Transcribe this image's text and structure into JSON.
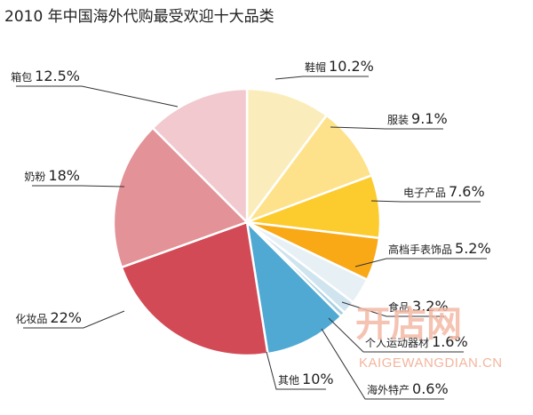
{
  "chart_data": {
    "type": "pie",
    "title": "2010 年中国海外代购最受欢迎十大品类",
    "slices": [
      {
        "label": "鞋帽",
        "value": 10.2,
        "display": "10.2%",
        "color": "#fbedbb"
      },
      {
        "label": "服装",
        "value": 9.1,
        "display": "9.1%",
        "color": "#fde28b"
      },
      {
        "label": "电子产品",
        "value": 7.6,
        "display": "7.6%",
        "color": "#fccb2e"
      },
      {
        "label": "高档手表饰品",
        "value": 5.2,
        "display": "5.2%",
        "color": "#f9a816"
      },
      {
        "label": "食品",
        "value": 3.2,
        "display": "3.2%",
        "color": "#e7f0f4"
      },
      {
        "label": "个人运动器材",
        "value": 1.6,
        "display": "1.6%",
        "color": "#cfe4ee"
      },
      {
        "label": "海外特产",
        "value": 0.6,
        "display": "0.6%",
        "color": "#a6cfe2"
      },
      {
        "label": "其他",
        "value": 10,
        "display": "10%",
        "color": "#4fa9d3"
      },
      {
        "label": "化妆品",
        "value": 22,
        "display": "22%",
        "color": "#d24a55"
      },
      {
        "label": "奶粉",
        "value": 18,
        "display": "18%",
        "color": "#e39297"
      },
      {
        "label": "箱包",
        "value": 12.5,
        "display": "12.5%",
        "color": "#f1c9ce"
      }
    ]
  },
  "watermark": {
    "brand": "开店网",
    "url": "KAIGEWANGDIAN.CN"
  }
}
